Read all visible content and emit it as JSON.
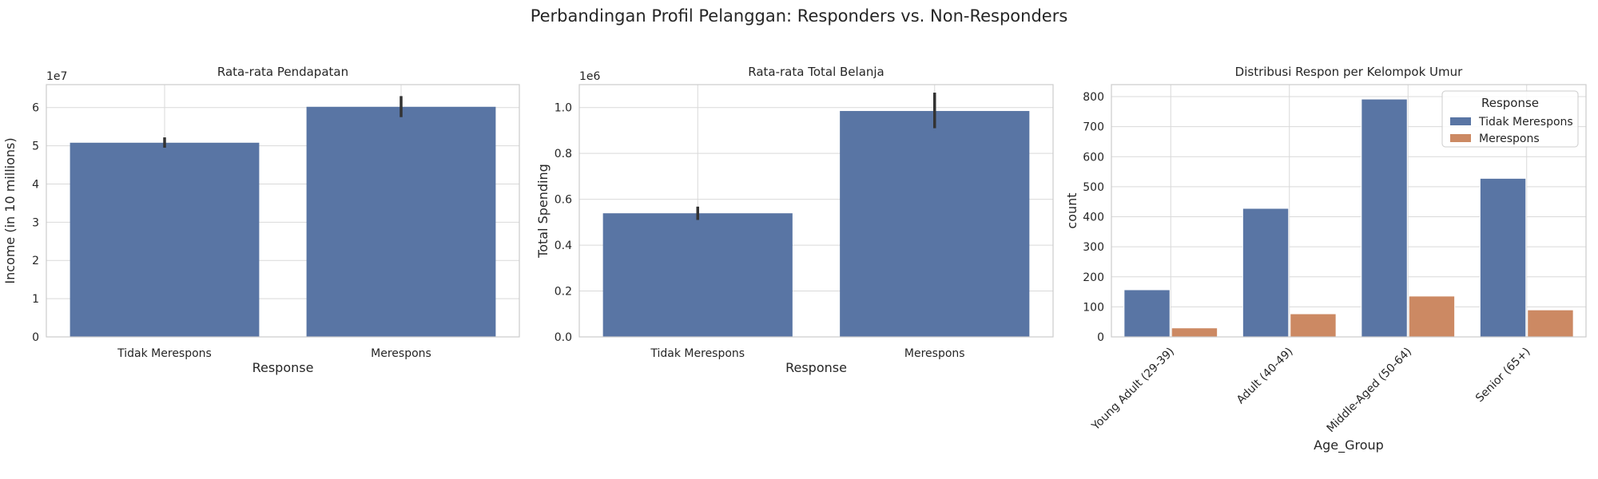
{
  "suptitle": "Perbandingan Profil Pelanggan: Responders vs. Non-Responders",
  "colors": {
    "bar": "#5975a4",
    "series1": "#5975a4",
    "series2": "#cc8963",
    "grid": "#d9d9d9",
    "spine": "#cccccc",
    "errbar": "#333333"
  },
  "chart_data": [
    {
      "type": "bar",
      "title": "Rata-rata Pendapatan",
      "xlabel": "Response",
      "ylabel": "Income (in 10 millions)",
      "offset_label": "1e7",
      "categories": [
        "Tidak Merespons",
        "Merespons"
      ],
      "values": [
        5.08,
        6.02
      ],
      "errors": [
        [
          4.95,
          5.22
        ],
        [
          5.75,
          6.3
        ]
      ],
      "ylim": [
        0,
        6.6
      ],
      "yticks": [
        "0",
        "1",
        "2",
        "3",
        "4",
        "5",
        "6"
      ],
      "grid": true
    },
    {
      "type": "bar",
      "title": "Rata-rata Total Belanja",
      "xlabel": "Response",
      "ylabel": "Total Spending",
      "offset_label": "1e6",
      "categories": [
        "Tidak Merespons",
        "Merespons"
      ],
      "values": [
        0.539,
        0.985
      ],
      "errors": [
        [
          0.51,
          0.568
        ],
        [
          0.91,
          1.065
        ]
      ],
      "ylim": [
        0,
        1.1
      ],
      "yticks": [
        "0.0",
        "0.2",
        "0.4",
        "0.6",
        "0.8",
        "1.0"
      ],
      "grid": true
    },
    {
      "type": "bar",
      "title": "Distribusi Respon per Kelompok Umur",
      "xlabel": "Age_Group",
      "ylabel": "count",
      "categories": [
        "Young Adult (29-39)",
        "Adult (40-49)",
        "Middle-Aged (50-64)",
        "Senior (65+)"
      ],
      "series": [
        {
          "name": "Tidak Merespons",
          "values": [
            157,
            428,
            792,
            528
          ]
        },
        {
          "name": "Merespons",
          "values": [
            30,
            77,
            136,
            90
          ]
        }
      ],
      "legend": {
        "title": "Response",
        "placement": "top-right"
      },
      "ylim": [
        0,
        840
      ],
      "yticks": [
        "0",
        "100",
        "200",
        "300",
        "400",
        "500",
        "600",
        "700",
        "800"
      ],
      "grid": true
    }
  ]
}
